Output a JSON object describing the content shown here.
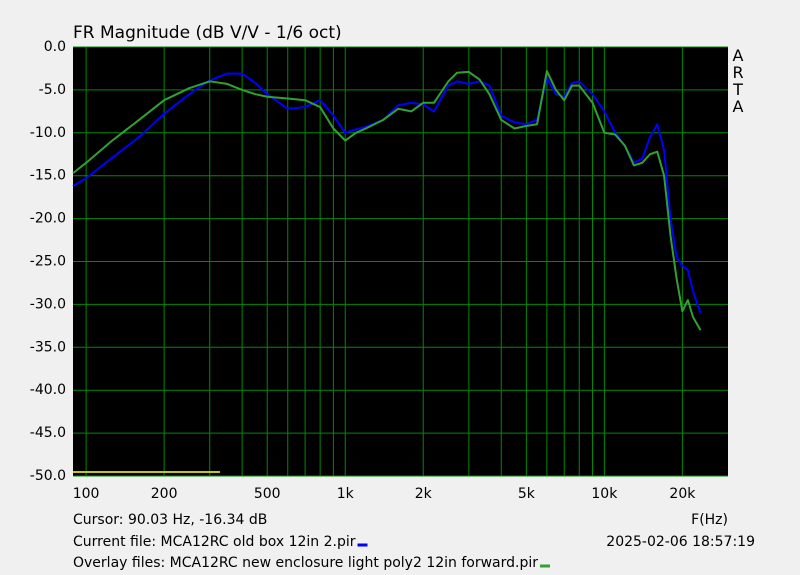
{
  "chart_data": {
    "type": "line",
    "title": "FR Magnitude (dB V/V - 1/6 oct)",
    "watermark": "ARTA",
    "x_axis_label": "F(Hz)",
    "cursor": "Cursor: 90.03 Hz, -16.34 dB",
    "timestamp": "2025-02-06   18:57:19",
    "xscale": "log",
    "grid": true,
    "xlim": [
      89,
      30000
    ],
    "ylim": [
      -50,
      0
    ],
    "xticks": [
      {
        "value": 100,
        "label": "100"
      },
      200,
      500,
      {
        "value": 1000,
        "label": "1k"
      },
      {
        "value": 2000,
        "label": "2k"
      },
      {
        "value": 5000,
        "label": "5k"
      },
      {
        "value": 10000,
        "label": "10k"
      },
      {
        "value": 20000,
        "label": "20k"
      }
    ],
    "x_minor_ticks": [
      300,
      400,
      600,
      700,
      800,
      900,
      3000,
      4000,
      6000,
      7000,
      8000,
      9000
    ],
    "yticks": [
      {
        "value": 0,
        "label": "0.0"
      },
      {
        "value": -5,
        "label": "-5.0"
      },
      {
        "value": -10,
        "label": "-10.0"
      },
      {
        "value": -15,
        "label": "-15.0"
      },
      {
        "value": -20,
        "label": "-20.0"
      },
      {
        "value": -25,
        "label": "-25.0"
      },
      {
        "value": -30,
        "label": "-30.0"
      },
      {
        "value": -35,
        "label": "-35.0"
      },
      {
        "value": -40,
        "label": "-40.0"
      },
      {
        "value": -45,
        "label": "-45.0"
      },
      {
        "value": -50,
        "label": "-50.0"
      }
    ],
    "x": [
      89,
      100,
      125,
      160,
      200,
      250,
      300,
      350,
      400,
      450,
      500,
      600,
      700,
      800,
      900,
      1000,
      1100,
      1200,
      1400,
      1600,
      1800,
      2000,
      2200,
      2500,
      2700,
      3000,
      3300,
      3600,
      4000,
      4500,
      5000,
      5500,
      6000,
      6500,
      7000,
      7500,
      8000,
      9000,
      10000,
      11000,
      12000,
      13000,
      14000,
      15000,
      16000,
      17000,
      18000,
      19000,
      20000,
      21000,
      22000,
      23500
    ],
    "series": [
      {
        "name": "Current file: MCA12RC old box 12in 2.pir",
        "color": "#0000ff",
        "values": [
          -16.2,
          -15.3,
          -13,
          -10.5,
          -7.8,
          -5.5,
          -3.9,
          -3.1,
          -3.1,
          -4.2,
          -5.5,
          -7.2,
          -7,
          -6.2,
          -8,
          -10,
          -9.6,
          -9.3,
          -8.5,
          -6.8,
          -6.5,
          -6.7,
          -7.5,
          -4.5,
          -4,
          -4.3,
          -4,
          -4.5,
          -8,
          -8.8,
          -9,
          -8.5,
          -3.6,
          -5.5,
          -5.8,
          -4.2,
          -4,
          -5.5,
          -7.5,
          -10,
          -11.5,
          -13.5,
          -13,
          -10.5,
          -9,
          -12,
          -20,
          -24.5,
          -25.5,
          -26,
          -28.5,
          -31
        ]
      },
      {
        "name": "Overlay files: MCA12RC new enclosure light poly2 12in forward.pir",
        "color": "#33a033",
        "values": [
          -14.7,
          -13.5,
          -11,
          -8.5,
          -6.2,
          -4.8,
          -4,
          -4.3,
          -5,
          -5.5,
          -5.8,
          -6,
          -6.2,
          -7,
          -9.5,
          -10.9,
          -10,
          -9.5,
          -8.5,
          -7.2,
          -7.5,
          -6.5,
          -6.5,
          -4,
          -3,
          -2.9,
          -3.8,
          -5.5,
          -8.5,
          -9.5,
          -9.2,
          -9,
          -2.8,
          -5,
          -6.2,
          -4.5,
          -4.5,
          -6.5,
          -10,
          -10.2,
          -11.5,
          -13.8,
          -13.5,
          -12.5,
          -12.2,
          -15,
          -22,
          -27,
          -30.8,
          -29.5,
          -31.5,
          -33
        ]
      }
    ]
  }
}
